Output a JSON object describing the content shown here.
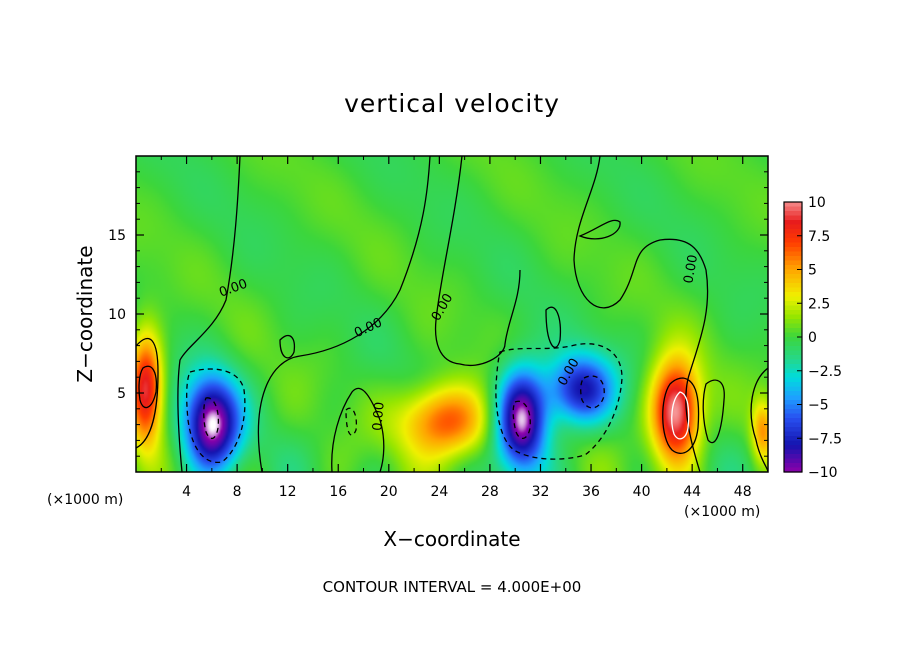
{
  "chart_data": {
    "type": "heatmap",
    "title": "vertical velocity",
    "xlabel": "X−coordinate",
    "ylabel": "Z−coordinate",
    "x_unit": "(×1000 m)",
    "xlim": [
      0,
      50
    ],
    "ylim": [
      0,
      20
    ],
    "xticks": [
      4,
      8,
      12,
      16,
      20,
      24,
      28,
      32,
      36,
      40,
      44,
      48
    ],
    "yticks": [
      5,
      10,
      15
    ],
    "colorbar": {
      "range": [
        -10,
        10
      ],
      "ticks": [
        "10",
        "7.5",
        "5",
        "2.5",
        "0",
        "−2.5",
        "−5",
        "−7.5",
        "−10"
      ],
      "tick_values": [
        10,
        7.5,
        5,
        2.5,
        0,
        -2.5,
        -5,
        -7.5,
        -10
      ]
    },
    "contour_interval_text": "CONTOUR INTERVAL = 4.000E+00",
    "contour_labels": [
      {
        "text": "0.00",
        "x": 7.8,
        "z": 11.4,
        "angle": -20
      },
      {
        "text": "0.00",
        "x": 18.5,
        "z": 8.9,
        "angle": -25
      },
      {
        "text": "0.00",
        "x": 24.5,
        "z": 10.3,
        "angle": -60
      },
      {
        "text": "0.00",
        "x": 19.5,
        "z": 3.5,
        "angle": -85
      },
      {
        "text": "0.00",
        "x": 34.5,
        "z": 6.2,
        "angle": -60
      },
      {
        "text": "0.00",
        "x": 44.2,
        "z": 12.8,
        "angle": -80
      }
    ],
    "features": [
      {
        "kind": "updraft",
        "x": 0.8,
        "z": 5.3,
        "rx": 1.3,
        "rz": 3.5,
        "w": 9
      },
      {
        "kind": "downdraft",
        "x": 6,
        "z": 3,
        "rx": 2.2,
        "rz": 3.0,
        "w": -11
      },
      {
        "kind": "updraft",
        "x": 24.5,
        "z": 3.2,
        "rx": 3.6,
        "rz": 2.3,
        "w": 7
      },
      {
        "kind": "downdraft",
        "x": 30.5,
        "z": 3.3,
        "rx": 2.0,
        "rz": 3.2,
        "w": -11
      },
      {
        "kind": "downdraft",
        "x": 35.2,
        "z": 5.2,
        "rx": 2.6,
        "rz": 2.2,
        "w": -8
      },
      {
        "kind": "updraft",
        "x": 42.7,
        "z": 3.8,
        "rx": 1.9,
        "rz": 3.2,
        "w": 11
      },
      {
        "kind": "updraft",
        "x": 49.6,
        "z": 2.6,
        "rx": 0.9,
        "rz": 2.0,
        "w": 5
      }
    ]
  }
}
